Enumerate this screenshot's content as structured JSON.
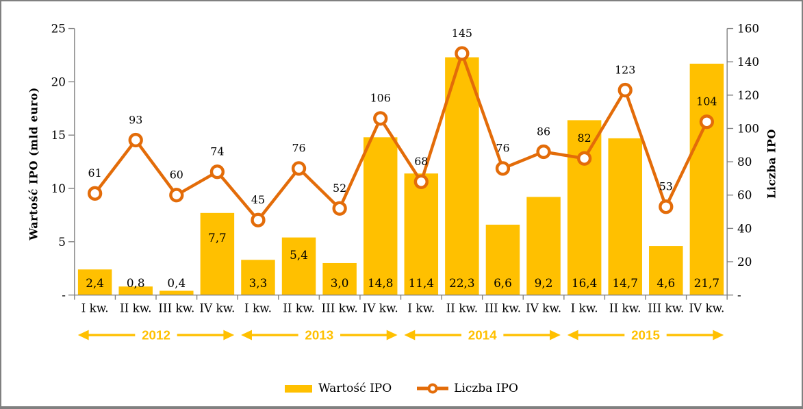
{
  "chart_data": {
    "type": "bar+line",
    "title": "",
    "categories": [
      "I kw.",
      "II kw.",
      "III kw.",
      "IV kw.",
      "I kw.",
      "II kw.",
      "III kw.",
      "IV kw.",
      "I kw.",
      "II kw.",
      "III kw.",
      "IV kw.",
      "I kw.",
      "II kw.",
      "III kw.",
      "IV kw."
    ],
    "years": [
      "2012",
      "2013",
      "2014",
      "2015"
    ],
    "series": [
      {
        "name": "Wartość IPO",
        "type": "bar",
        "color": "#FFC000",
        "values": [
          2.4,
          0.8,
          0.4,
          7.7,
          3.3,
          5.4,
          3.0,
          14.8,
          11.4,
          22.3,
          6.6,
          9.2,
          16.4,
          14.7,
          4.6,
          21.7
        ],
        "labels": [
          "2,4",
          "0,8",
          "0,4",
          "7,7",
          "3,3",
          "5,4",
          "3,0",
          "14,8",
          "11,4",
          "22,3",
          "6,6",
          "9,2",
          "16,4",
          "14,7",
          "4,6",
          "21,7"
        ],
        "label_pos": [
          "base",
          "base",
          "base",
          "top",
          "base",
          "top",
          "base",
          "base",
          "base",
          "base",
          "base",
          "base",
          "base",
          "base",
          "base",
          "base"
        ]
      },
      {
        "name": "Liczba IPO",
        "type": "line",
        "color": "#E36C09",
        "marker": "circle",
        "marker_fill": "#FFFFFF",
        "values": [
          61,
          93,
          60,
          74,
          45,
          76,
          52,
          106,
          68,
          145,
          76,
          86,
          82,
          123,
          53,
          104
        ],
        "labels": [
          "61",
          "93",
          "60",
          "74",
          "45",
          "76",
          "52",
          "106",
          "68",
          "145",
          "76",
          "86",
          "82",
          "123",
          "53",
          "104"
        ]
      }
    ],
    "left_axis": {
      "title": "Wartość IPO (mld euro)",
      "min": 0,
      "max": 25,
      "step": 5,
      "tick_labels": [
        "25",
        "20",
        "15",
        "10",
        "5",
        "-"
      ]
    },
    "right_axis": {
      "title": "Liczba IPO",
      "min": 0,
      "max": 160,
      "step": 20,
      "tick_labels": [
        "160",
        "140",
        "120",
        "100",
        "80",
        "60",
        "40",
        "20",
        "-"
      ]
    },
    "legend": {
      "position": "bottom-center",
      "items": [
        "Wartość IPO",
        "Liczba IPO"
      ]
    },
    "gridlines": false,
    "style": {
      "bar_color": "#FFC000",
      "line_color": "#E36C09",
      "marker_fill": "#FFFFFF",
      "axis_color": "#808080",
      "text_color": "#000000",
      "year_color": "#FFC000",
      "background": "#FFFFFF",
      "border_color": "#808080"
    }
  }
}
